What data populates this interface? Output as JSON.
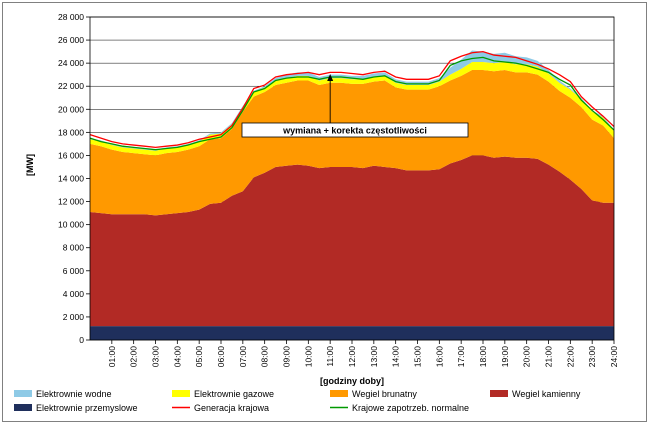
{
  "chart_data": {
    "type": "area",
    "xlabel": "[godziny doby]",
    "ylabel": "[MW]",
    "ylim": [
      0,
      28000
    ],
    "y_ticks": [
      0,
      2000,
      4000,
      6000,
      8000,
      10000,
      12000,
      14000,
      16000,
      18000,
      20000,
      22000,
      24000,
      26000,
      28000
    ],
    "y_tick_labels": [
      "0",
      "2 000",
      "4 000",
      "6 000",
      "8 000",
      "10 000",
      "12 000",
      "14 000",
      "16 000",
      "18 000",
      "20 000",
      "22 000",
      "24 000",
      "26 000",
      "28 000"
    ],
    "x_tick_labels": [
      "01:00",
      "02:00",
      "03:00",
      "04:00",
      "05:00",
      "06:00",
      "07:00",
      "08:00",
      "09:00",
      "10:00",
      "11:00",
      "12:00",
      "13:00",
      "14:00",
      "15:00",
      "16:00",
      "17:00",
      "18:00",
      "19:00",
      "20:00",
      "21:00",
      "22:00",
      "23:00",
      "24:00"
    ],
    "x": [
      0,
      0.5,
      1,
      1.5,
      2,
      2.5,
      3,
      3.5,
      4,
      4.5,
      5,
      5.5,
      6,
      6.5,
      7,
      7.5,
      8,
      8.5,
      9,
      9.5,
      10,
      10.5,
      11,
      11.5,
      12,
      12.5,
      13,
      13.5,
      14,
      14.5,
      15,
      15.5,
      16,
      16.5,
      17,
      17.5,
      18,
      18.5,
      19,
      19.5,
      20,
      20.5,
      21,
      21.5,
      22,
      22.5,
      23,
      23.5,
      24
    ],
    "grid": true,
    "legend_position": "bottom",
    "series": [
      {
        "name": "Elektrownie przemyslowe",
        "kind": "stacked",
        "color": "#1f2f5c",
        "values": [
          1200,
          1200,
          1200,
          1200,
          1200,
          1200,
          1200,
          1200,
          1200,
          1200,
          1200,
          1200,
          1200,
          1200,
          1200,
          1200,
          1200,
          1200,
          1200,
          1200,
          1200,
          1200,
          1200,
          1200,
          1200,
          1200,
          1200,
          1200,
          1200,
          1200,
          1200,
          1200,
          1200,
          1200,
          1200,
          1200,
          1200,
          1200,
          1200,
          1200,
          1200,
          1200,
          1200,
          1200,
          1200,
          1200,
          1200,
          1200,
          1200
        ]
      },
      {
        "name": "Wegiel kamienny",
        "kind": "stacked",
        "color": "#b22a25",
        "values": [
          9900,
          9800,
          9700,
          9700,
          9700,
          9700,
          9600,
          9700,
          9800,
          9900,
          10100,
          10600,
          10700,
          11300,
          11700,
          12900,
          13300,
          13800,
          13900,
          14000,
          13900,
          13700,
          13800,
          13800,
          13800,
          13700,
          13900,
          13800,
          13700,
          13500,
          13500,
          13500,
          13600,
          14100,
          14400,
          14800,
          14800,
          14600,
          14700,
          14600,
          14600,
          14500,
          14000,
          13400,
          12700,
          11900,
          10900,
          10700,
          10700
        ]
      },
      {
        "name": "Wegiel brunatny",
        "kind": "stacked",
        "color": "#ff9900",
        "values": [
          5900,
          5800,
          5600,
          5400,
          5300,
          5200,
          5200,
          5300,
          5300,
          5400,
          5500,
          5600,
          5600,
          5800,
          6900,
          7000,
          7000,
          7100,
          7200,
          7300,
          7400,
          7200,
          7300,
          7300,
          7200,
          7300,
          7300,
          7500,
          7000,
          7000,
          7000,
          7000,
          7200,
          7200,
          7300,
          7400,
          7400,
          7500,
          7500,
          7400,
          7400,
          7300,
          7200,
          7000,
          7100,
          7100,
          7000,
          6700,
          5600
        ]
      },
      {
        "name": "Elektrownie gazowe",
        "kind": "stacked",
        "color": "#ffff00",
        "values": [
          400,
          400,
          400,
          400,
          400,
          400,
          400,
          400,
          400,
          400,
          400,
          400,
          400,
          400,
          400,
          400,
          400,
          400,
          400,
          400,
          400,
          400,
          400,
          400,
          400,
          400,
          400,
          400,
          400,
          400,
          400,
          400,
          400,
          500,
          600,
          700,
          700,
          700,
          700,
          700,
          700,
          700,
          700,
          700,
          700,
          700,
          700,
          700,
          600
        ]
      },
      {
        "name": "Elektrownie wodne",
        "kind": "stacked",
        "color": "#8ecae6",
        "values": [
          100,
          100,
          100,
          100,
          100,
          100,
          100,
          100,
          100,
          100,
          100,
          100,
          100,
          100,
          100,
          100,
          100,
          200,
          300,
          300,
          300,
          300,
          300,
          300,
          300,
          300,
          300,
          300,
          300,
          300,
          300,
          300,
          300,
          600,
          800,
          1000,
          900,
          800,
          800,
          700,
          600,
          500,
          300,
          200,
          100,
          100,
          100,
          100,
          100
        ]
      },
      {
        "name": "Generacja krajowa",
        "kind": "line",
        "color": "#ff0000",
        "values": [
          17800,
          17500,
          17200,
          17000,
          16900,
          16800,
          16700,
          16800,
          16900,
          17100,
          17400,
          17600,
          17800,
          18600,
          20100,
          21800,
          22100,
          22800,
          23000,
          23100,
          23200,
          23000,
          23200,
          23200,
          23100,
          23000,
          23200,
          23300,
          22800,
          22600,
          22600,
          22600,
          22900,
          24200,
          24600,
          24900,
          25000,
          24700,
          24600,
          24500,
          24200,
          23900,
          23500,
          23000,
          22400,
          21100,
          20200,
          19400,
          18500
        ]
      },
      {
        "name": "Krajowe zapotrzeb. normalne",
        "kind": "line",
        "color": "#009900",
        "values": [
          17500,
          17200,
          17000,
          16800,
          16700,
          16600,
          16500,
          16600,
          16700,
          16900,
          17200,
          17400,
          17600,
          18400,
          19900,
          21500,
          21800,
          22500,
          22700,
          22800,
          22800,
          22600,
          22800,
          22800,
          22700,
          22600,
          22800,
          22900,
          22400,
          22200,
          22200,
          22200,
          22500,
          23800,
          24200,
          24400,
          24500,
          24200,
          24100,
          24000,
          23800,
          23500,
          23200,
          22600,
          22100,
          20800,
          19900,
          19100,
          18200
        ]
      }
    ],
    "annotation": {
      "text": "wymiana + korekta częstotliwości",
      "arrow_x": 11
    }
  }
}
